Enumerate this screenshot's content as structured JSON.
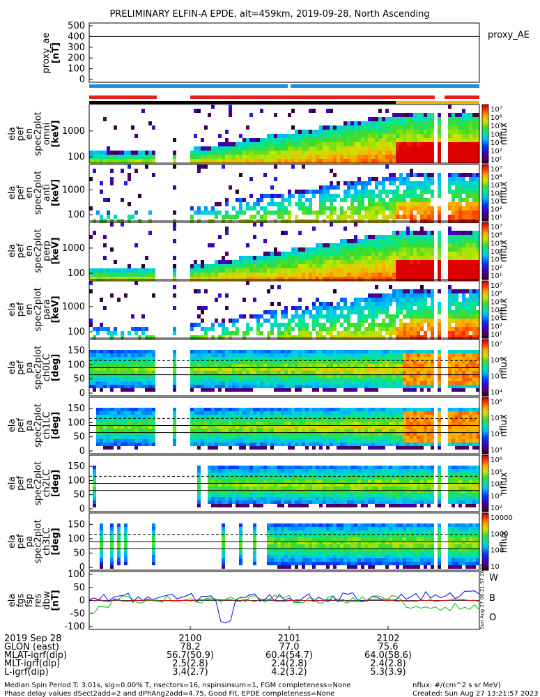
{
  "title": "PRELIMINARY ELFIN-A EPDE, alt=459km, 2019-09-28, North Ascending",
  "colors": {
    "red_bar": "#e8201c",
    "blue_bar": "#1a8fe0",
    "black_bar": "#000000",
    "yellow_bar": "#f2b200",
    "trace_blue": "#0000ff",
    "trace_green": "#00c000",
    "trace_red": "#ff0000"
  },
  "panels": [
    {
      "id": "proxy_ae",
      "ylabel": [
        "proxy_ae",
        "[nT]"
      ],
      "rlabel": "proxy_AE",
      "yticks": [
        "0",
        "100",
        "200",
        "300",
        "400",
        "500"
      ]
    },
    {
      "id": "spec_omni",
      "ylabel": [
        "ela",
        "pef",
        "en",
        "spec2plot",
        "omni",
        "[keV]"
      ],
      "cbar_label": "nflux",
      "yticks": [
        "100",
        "1000"
      ],
      "cbar_ticks": [
        "10⁷",
        "10⁶",
        "10⁵",
        "10⁴",
        "10³",
        "10²",
        "10¹"
      ]
    },
    {
      "id": "spec_anti",
      "ylabel": [
        "ela",
        "pef",
        "en",
        "spec2plot",
        "anti",
        "[keV]"
      ],
      "cbar_label": "nflux",
      "yticks": [
        "100",
        "1000"
      ],
      "cbar_ticks": [
        "10⁷",
        "10⁶",
        "10⁵",
        "10⁴",
        "10³",
        "10²",
        "10¹"
      ]
    },
    {
      "id": "spec_perp",
      "ylabel": [
        "ela",
        "pef",
        "en",
        "spec2plot",
        "perp",
        "[keV]"
      ],
      "cbar_label": "nflux",
      "yticks": [
        "100",
        "1000"
      ],
      "cbar_ticks": [
        "10⁷",
        "10⁶",
        "10⁵",
        "10⁴",
        "10³",
        "10²",
        "10¹"
      ]
    },
    {
      "id": "spec_para",
      "ylabel": [
        "ela",
        "pef",
        "en",
        "spec2plot",
        "para",
        "[keV]"
      ],
      "cbar_label": "nflux",
      "yticks": [
        "100",
        "1000"
      ],
      "cbar_ticks": [
        "10⁷",
        "10⁶",
        "10⁵",
        "10⁴",
        "10³",
        "10²",
        "10¹"
      ]
    },
    {
      "id": "pa_ch0",
      "ylabel": [
        "ela",
        "pef",
        "pa",
        "spec2plot",
        "ch0LC",
        "[deg]"
      ],
      "cbar_label": "nflux",
      "yticks": [
        "0",
        "50",
        "100",
        "150"
      ],
      "cbar_ticks": [
        "10⁷",
        "10⁶",
        "10⁵",
        "10⁴"
      ]
    },
    {
      "id": "pa_ch1",
      "ylabel": [
        "ela",
        "pef",
        "pa",
        "spec2plot",
        "ch1LC",
        "[deg]"
      ],
      "cbar_label": "nflux",
      "yticks": [
        "0",
        "50",
        "100",
        "150"
      ],
      "cbar_ticks": [
        "10⁶",
        "10⁵",
        "10⁴",
        "10³"
      ]
    },
    {
      "id": "pa_ch2",
      "ylabel": [
        "ela",
        "pef",
        "pa",
        "spec2plot",
        "ch2LC",
        "[deg]"
      ],
      "cbar_label": "nflux",
      "yticks": [
        "0",
        "50",
        "100",
        "150"
      ],
      "cbar_ticks": [
        "10⁶",
        "10⁵",
        "10⁴",
        "10³",
        "10²"
      ]
    },
    {
      "id": "pa_ch3",
      "ylabel": [
        "ela",
        "pef",
        "pa",
        "spec2plot",
        "ch3LC",
        "[deg]"
      ],
      "cbar_label": "nflux",
      "yticks": [
        "0",
        "50",
        "100",
        "150"
      ],
      "cbar_ticks": [
        "10000",
        "1000",
        "100",
        "10"
      ]
    },
    {
      "id": "fgs",
      "ylabel": [
        "ela",
        "fgs",
        "fsp",
        "res",
        "dbw",
        "[nT]"
      ],
      "yticks": [
        "-100",
        "-50",
        "0",
        "50",
        "100"
      ],
      "legend": [
        "W",
        "B",
        "O"
      ]
    }
  ],
  "footer": {
    "rows": [
      {
        "label": "2019 Sep 28",
        "values": [
          "2100",
          "2101",
          "2102"
        ]
      },
      {
        "label": "GLON (east)",
        "values": [
          "78.2",
          "77.0",
          "75.6"
        ]
      },
      {
        "label": "MLAT-igrf(dip)",
        "values": [
          "56.7(50.9)",
          "60.4(54.7)",
          "64.0(58.6)"
        ]
      },
      {
        "label": "MLT-igrf(dip)",
        "values": [
          "2.5(2.8)",
          "2.4(2.8)",
          "2.4(2.8)"
        ]
      },
      {
        "label": "L-igrf(dip)",
        "values": [
          "3.4(2.7)",
          "4.2(3.2)",
          "5.3(3.9)"
        ]
      }
    ],
    "note1": "Median Spin Period T: 3.01s, sig=0.00% T, nsectors=16, nspinsinsum=1, FGM completeness=None",
    "note2": "Phase delay values dSect2add=2 and dPhAng2add=4.75, Good Fit, EPDE completeness=None",
    "units": "nflux: #/(cm^2 s sr MeV)",
    "created": "Created: Sun Aug 27 13:21:57 2023",
    "side_stamp": "Sun Aug 27 06:21:57 2023"
  },
  "chart_data": {
    "type": "heatmap",
    "title": "PRELIMINARY ELFIN-A EPDE, alt=459km, 2019-09-28, North Ascending",
    "x_ticks": [
      "2100",
      "2101",
      "2102"
    ],
    "proxy_ae": {
      "ylabel": "proxy_ae [nT]",
      "ylim": [
        0,
        500
      ],
      "value": 400
    },
    "energy_spectrograms": {
      "ylabel": "[keV]",
      "yticks": [
        100,
        1000
      ],
      "y_scale": "log",
      "cbar_range": [
        "10^1",
        "10^7"
      ],
      "cbar_label": "nflux",
      "names": [
        "omni",
        "anti",
        "perp",
        "para"
      ]
    },
    "pitch_angle_spectrograms": {
      "ylabel": "[deg]",
      "ylim": [
        0,
        180
      ],
      "yticks": [
        0,
        50,
        100,
        150
      ],
      "names": [
        "ch0LC",
        "ch1LC",
        "ch2LC",
        "ch3LC"
      ]
    },
    "fgs_dbw": {
      "ylabel": "[nT]",
      "ylim": [
        -100,
        100
      ],
      "yticks": [
        -100,
        -50,
        0,
        50,
        100
      ],
      "series": [
        {
          "name": "W"
        },
        {
          "name": "B"
        },
        {
          "name": "O"
        }
      ]
    }
  }
}
